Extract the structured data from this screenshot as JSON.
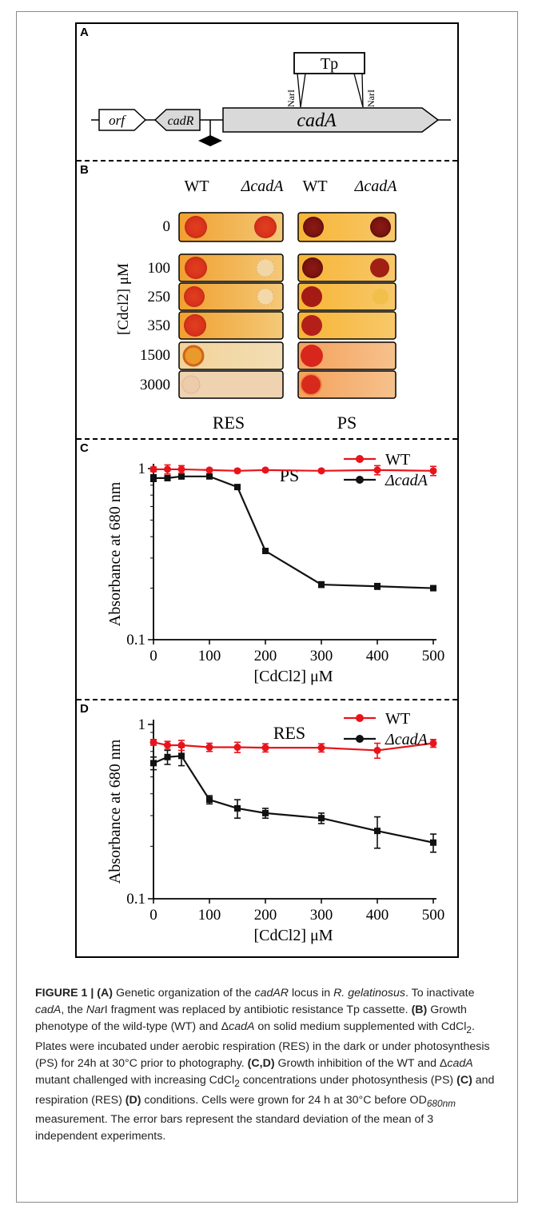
{
  "panel_a": {
    "label": "A",
    "genes": [
      "orf",
      "cadR",
      "cadA"
    ],
    "insert": "Tp",
    "site_left": "NarI",
    "site_right": "NarI"
  },
  "panel_b": {
    "label": "B",
    "col_headers": [
      "WT",
      "ΔcadA",
      "WT",
      "ΔcadA"
    ],
    "concentrations": [
      "0",
      "100",
      "250",
      "350",
      "1500",
      "3000"
    ],
    "ylabel": "[Cdcl2] μM",
    "bottom_labels": [
      "RES",
      "PS"
    ],
    "colors": {
      "res_bg": "#f2a233",
      "ps_bg": "#f5b330",
      "res_colony": "#d8321c",
      "ps_colony": "#8c1414"
    }
  },
  "panel_c": {
    "label": "C"
  },
  "panel_d": {
    "label": "D"
  },
  "chart_data": [
    {
      "type": "line",
      "title": "PS",
      "xlabel": "[CdCl2] μM",
      "ylabel": "Absorbance at 680 nm",
      "yscale": "log",
      "xlim": [
        0,
        500
      ],
      "ylim": [
        0.1,
        1
      ],
      "xticks": [
        "0",
        "100",
        "200",
        "300",
        "400",
        "500"
      ],
      "yticks": [
        "0.1",
        "1"
      ],
      "legend": "top-right",
      "x": [
        0,
        25,
        50,
        100,
        150,
        200,
        300,
        400,
        500
      ],
      "series": [
        {
          "name": "WT",
          "color": "#e8141b",
          "values": [
            0.99,
            0.99,
            0.99,
            0.98,
            0.97,
            0.98,
            0.97,
            0.98,
            0.97
          ],
          "errors": [
            0.03,
            0.06,
            0.05,
            0.02,
            0.02,
            0.02,
            0.02,
            0.06,
            0.06
          ]
        },
        {
          "name": "ΔcadA",
          "color": "#111111",
          "values": [
            0.88,
            0.88,
            0.9,
            0.9,
            0.78,
            0.33,
            0.21,
            0.205,
            0.2
          ],
          "errors": [
            0.04,
            0.03,
            0.03,
            0.02,
            0.02,
            0.01,
            0.008,
            0.008,
            0.006
          ]
        }
      ]
    },
    {
      "type": "line",
      "title": "RES",
      "xlabel": "[CdCl2] μM",
      "ylabel": "Absorbance at 680 nm",
      "yscale": "log",
      "xlim": [
        0,
        500
      ],
      "ylim": [
        0.1,
        1
      ],
      "xticks": [
        "0",
        "100",
        "200",
        "300",
        "400",
        "500"
      ],
      "yticks": [
        "0.1",
        "1"
      ],
      "legend": "top-right",
      "x": [
        0,
        25,
        50,
        100,
        150,
        200,
        300,
        400,
        500
      ],
      "series": [
        {
          "name": "WT",
          "color": "#e8141b",
          "values": [
            0.79,
            0.76,
            0.76,
            0.74,
            0.74,
            0.735,
            0.735,
            0.71,
            0.78
          ],
          "errors": [
            0.03,
            0.04,
            0.05,
            0.04,
            0.05,
            0.04,
            0.04,
            0.07,
            0.04
          ]
        },
        {
          "name": "ΔcadA",
          "color": "#111111",
          "values": [
            0.6,
            0.65,
            0.66,
            0.37,
            0.33,
            0.31,
            0.29,
            0.245,
            0.21
          ],
          "errors": [
            0.05,
            0.06,
            0.08,
            0.02,
            0.04,
            0.02,
            0.02,
            0.05,
            0.025
          ]
        }
      ]
    }
  ],
  "caption": {
    "lead": "FIGURE 1 | ",
    "a_tag": "(A)",
    "s1": " Genetic organization of the ",
    "cadAR": "cadAR",
    "s2": " locus in ",
    "rgel": "R. gelatinosus",
    "s3": ". To inactivate ",
    "cadA1": "cadA",
    "s4": ", the ",
    "nar": "Nar",
    "s5": "I fragment was replaced by antibiotic resistance Tp cassette. ",
    "b_tag": "(B)",
    "s6": " Growth phenotype of the wild-type (WT) and Δ",
    "cadA2": "cadA",
    "s7": " on solid medium supplemented with CdCl",
    "sub2a": "2",
    "s8": ". Plates were incubated under aerobic respiration (RES) in the dark or under photosynthesis (PS) for 24h at 30°C prior to photography. ",
    "cd_tag": "(C,D)",
    "s9": " Growth inhibition of the WT and Δ",
    "cadA3": "cadA",
    "s10": " mutant challenged with increasing CdCl",
    "sub2b": "2",
    "s11": " concentrations under photosynthesis (PS) ",
    "c_tag": "(C)",
    "s12": " and respiration (RES) ",
    "d_tag": "(D)",
    "s13": " conditions. Cells were grown for 24 h at 30°C before OD",
    "od_sub": "680nm",
    "s14": " measurement. The error bars represent the standard deviation of the mean of 3 independent experiments."
  }
}
